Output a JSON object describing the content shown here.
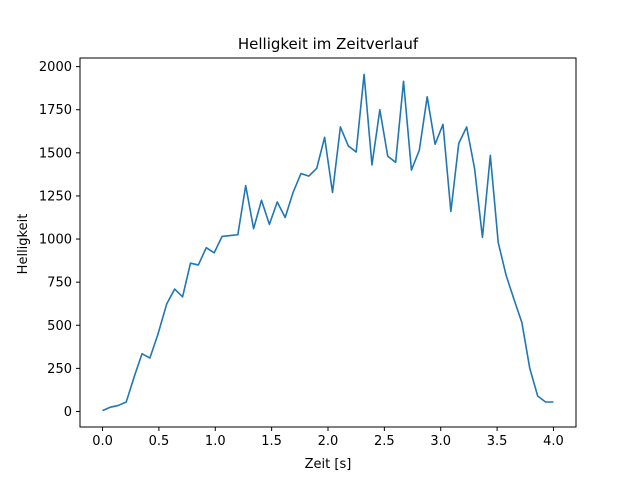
{
  "chart_data": {
    "type": "line",
    "title": "Helligkeit im Zeitverlauf",
    "xlabel": "Zeit [s]",
    "ylabel": "Helligkeit",
    "xlim": [
      -0.2,
      4.2
    ],
    "ylim": [
      -90,
      2050
    ],
    "xticks": [
      0.0,
      0.5,
      1.0,
      1.5,
      2.0,
      2.5,
      3.0,
      3.5,
      4.0
    ],
    "xtick_labels": [
      "0.0",
      "0.5",
      "1.0",
      "1.5",
      "2.0",
      "2.5",
      "3.0",
      "3.5",
      "4.0"
    ],
    "yticks": [
      0,
      250,
      500,
      750,
      1000,
      1250,
      1500,
      1750,
      2000
    ],
    "ytick_labels": [
      "0",
      "250",
      "500",
      "750",
      "1000",
      "1250",
      "1500",
      "1750",
      "2000"
    ],
    "grid": false,
    "line_color": "#1f77b4",
    "series": [
      {
        "name": "Helligkeit",
        "x": [
          0.0,
          0.07,
          0.14,
          0.21,
          0.28,
          0.35,
          0.42,
          0.49,
          0.57,
          0.64,
          0.71,
          0.78,
          0.85,
          0.92,
          0.99,
          1.06,
          1.13,
          1.2,
          1.27,
          1.34,
          1.41,
          1.48,
          1.55,
          1.62,
          1.69,
          1.76,
          1.83,
          1.9,
          1.97,
          2.04,
          2.11,
          2.18,
          2.25,
          2.32,
          2.39,
          2.46,
          2.53,
          2.6,
          2.67,
          2.74,
          2.81,
          2.88,
          2.95,
          3.02,
          3.09,
          3.16,
          3.23,
          3.3,
          3.37,
          3.44,
          3.51,
          3.58,
          3.65,
          3.72,
          3.79,
          3.86,
          3.93,
          4.0
        ],
        "values": [
          5,
          25,
          35,
          55,
          200,
          335,
          310,
          445,
          625,
          710,
          665,
          860,
          850,
          950,
          920,
          1015,
          1020,
          1025,
          1310,
          1060,
          1225,
          1085,
          1215,
          1125,
          1270,
          1380,
          1365,
          1410,
          1590,
          1270,
          1650,
          1540,
          1505,
          1955,
          1430,
          1750,
          1480,
          1445,
          1915,
          1400,
          1515,
          1825,
          1550,
          1665,
          1160,
          1555,
          1650,
          1410,
          1010,
          1485,
          980,
          790,
          650,
          515,
          250,
          90,
          55,
          55
        ]
      }
    ]
  }
}
